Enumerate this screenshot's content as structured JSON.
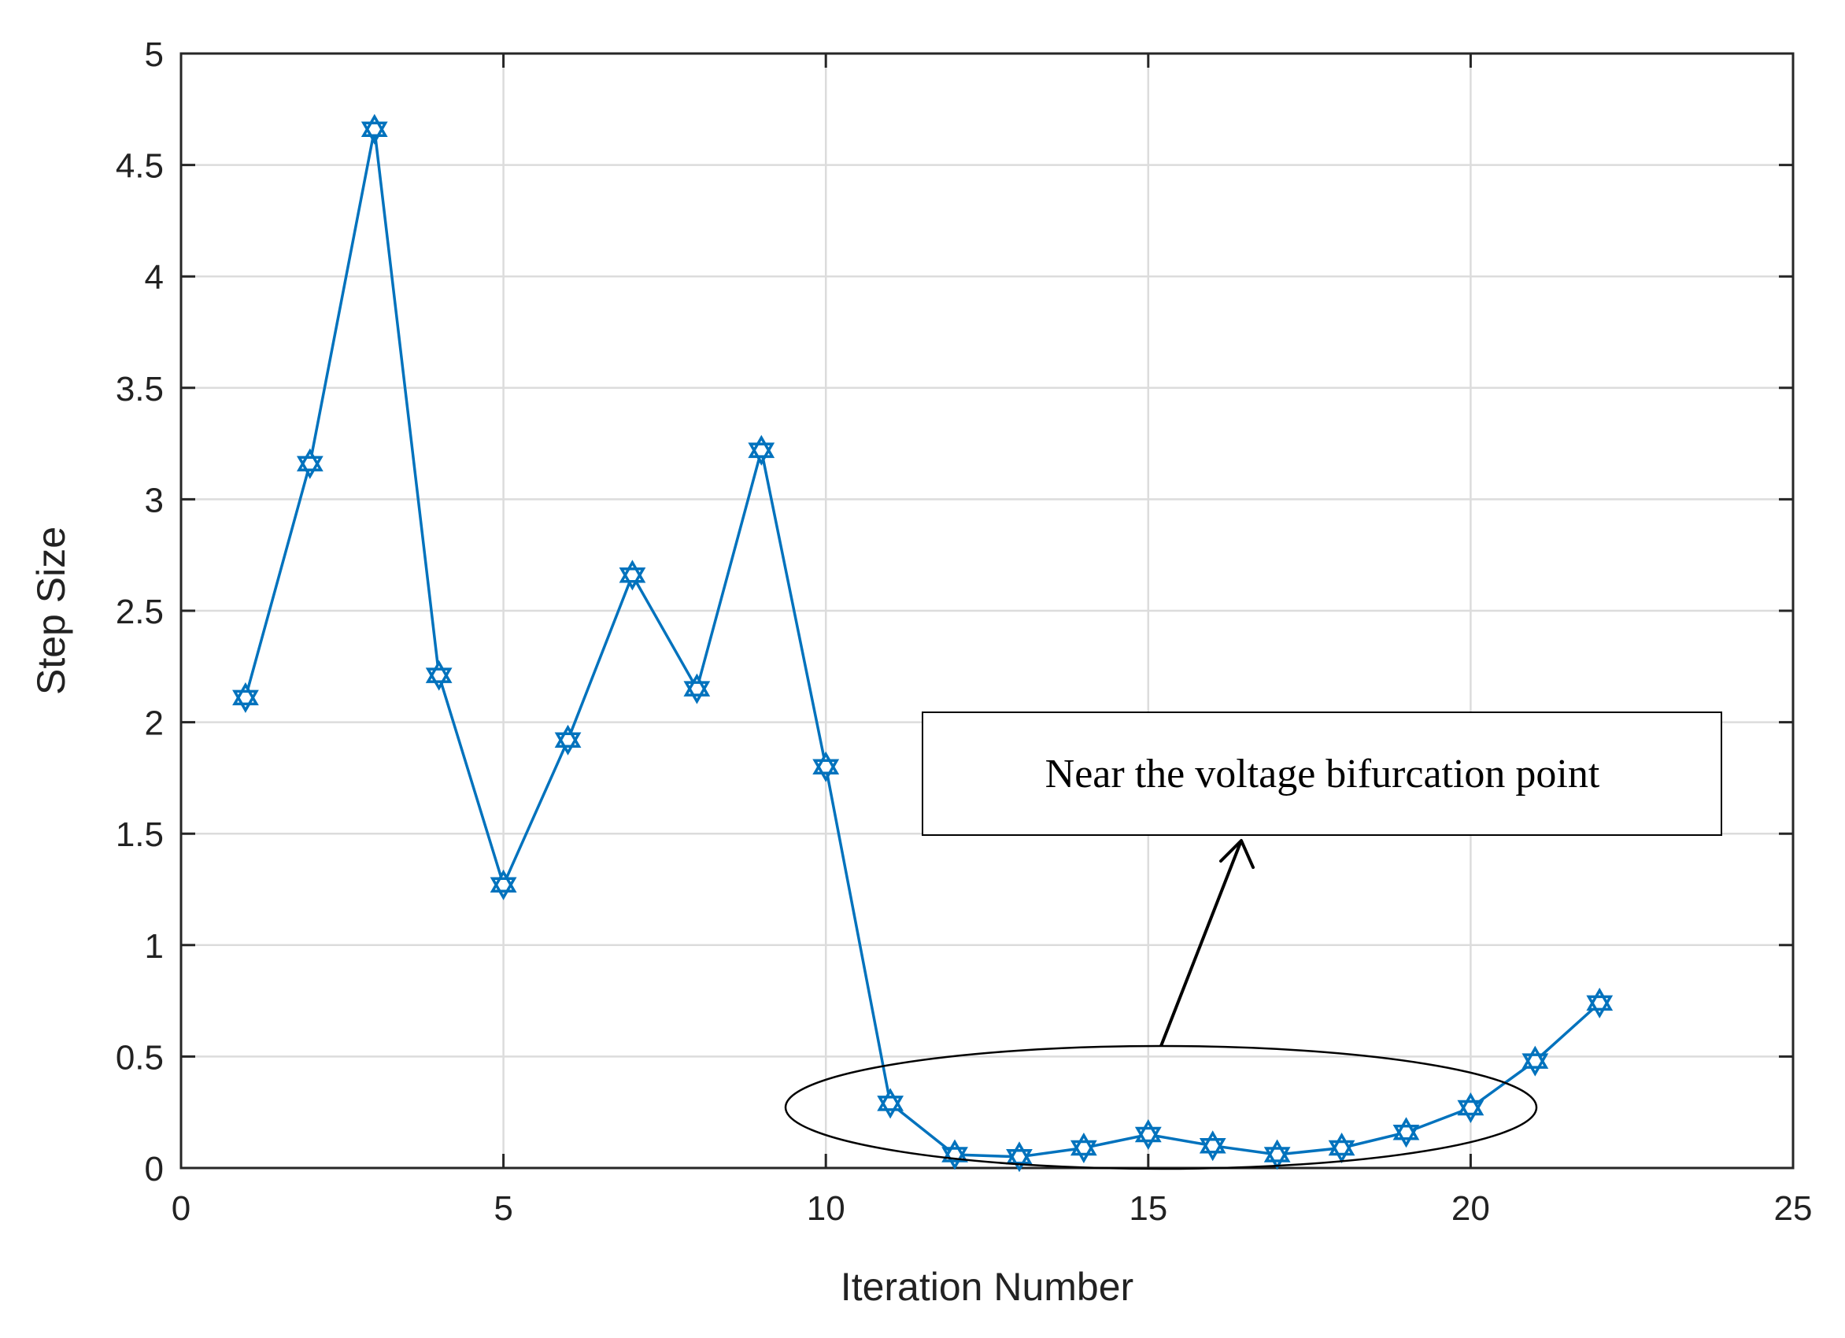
{
  "chart_data": {
    "type": "line",
    "xlabel": "Iteration Number",
    "ylabel": "Step Size",
    "xlim": [
      0,
      25
    ],
    "ylim": [
      0,
      5
    ],
    "xticks": [
      "0",
      "5",
      "10",
      "15",
      "20",
      "25"
    ],
    "yticks": [
      "0",
      "0.5",
      "1",
      "1.5",
      "2",
      "2.5",
      "3",
      "3.5",
      "4",
      "4.5",
      "5"
    ],
    "grid": true,
    "series": [
      {
        "marker": "hexagram",
        "color": "#0072BD",
        "x": [
          1,
          2,
          3,
          4,
          5,
          6,
          7,
          8,
          9,
          10,
          11,
          12,
          13,
          14,
          15,
          16,
          17,
          18,
          19,
          20,
          21,
          22
        ],
        "y": [
          2.11,
          3.16,
          4.66,
          2.21,
          1.27,
          1.92,
          2.66,
          2.15,
          3.22,
          1.8,
          0.29,
          0.06,
          0.05,
          0.09,
          0.15,
          0.1,
          0.06,
          0.09,
          0.16,
          0.27,
          0.48,
          0.74
        ]
      }
    ],
    "annotations": [
      {
        "text": "Near the voltage bifurcation point"
      }
    ]
  }
}
